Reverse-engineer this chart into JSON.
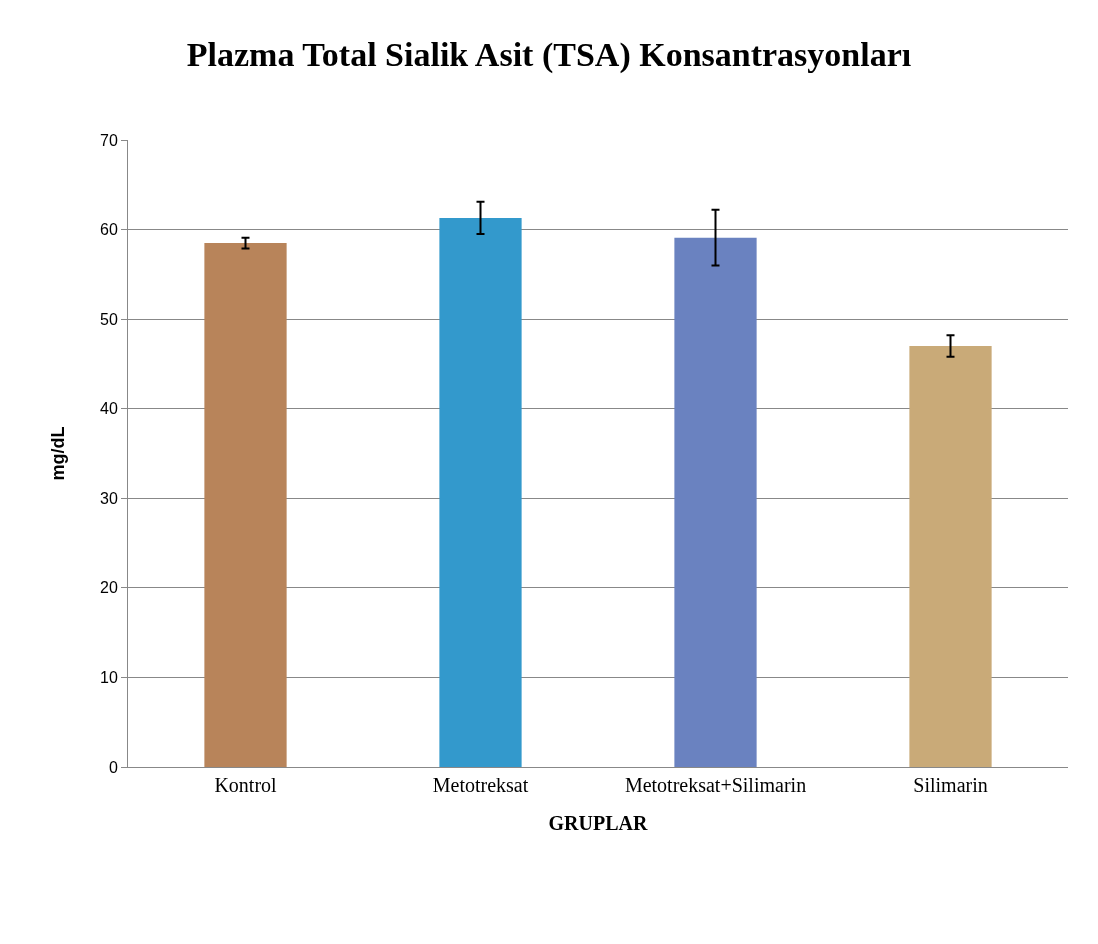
{
  "chart_data": {
    "type": "bar",
    "title": "Plazma Total Sialik Asit (TSA) Konsantrasyonları",
    "xlabel": "GRUPLAR",
    "ylabel": "mg/dL",
    "categories": [
      "Kontrol",
      "Metotreksat",
      "Metotreksat+Silimarin",
      "Silimarin"
    ],
    "values": [
      58.5,
      61.3,
      59.1,
      47.0
    ],
    "errors": [
      0.6,
      1.8,
      3.1,
      1.2
    ],
    "colors": [
      "#b8845a",
      "#3399cc",
      "#6a82c0",
      "#c9aa78"
    ],
    "ylim": [
      0,
      70
    ],
    "yticks": [
      0,
      10,
      20,
      30,
      40,
      50,
      60,
      70
    ],
    "grid": "y"
  }
}
